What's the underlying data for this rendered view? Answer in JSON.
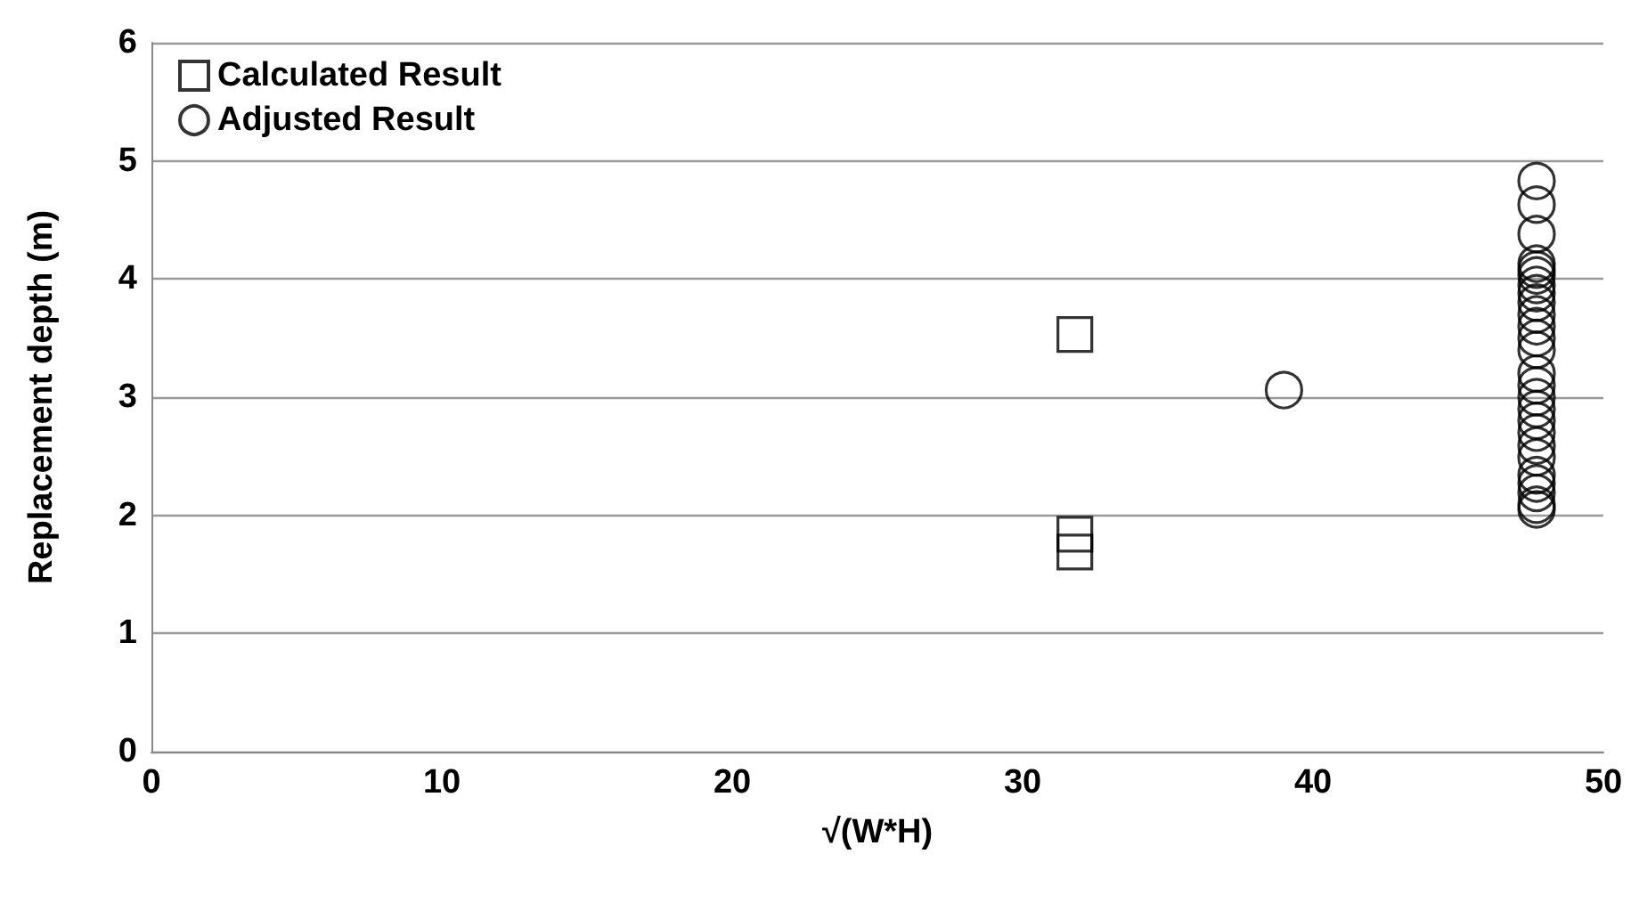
{
  "chart_data": {
    "type": "scatter",
    "xlabel": "√(W*H)",
    "ylabel": "Replacement depth (m)",
    "xlim": [
      0,
      50
    ],
    "xticks": [
      0,
      10,
      20,
      30,
      40,
      50
    ],
    "ylim": [
      0,
      6
    ],
    "yticks": [
      0,
      1,
      2,
      3,
      4,
      5,
      6
    ],
    "grid": "y",
    "legend": "top left",
    "series": [
      {
        "name": "Calculated Result",
        "color": "#000000",
        "marker": "square",
        "x": [
          31.8,
          31.8,
          31.8
        ],
        "values": [
          3.53,
          1.84,
          1.69
        ]
      },
      {
        "name": "Adjusted Result",
        "color": "#000000",
        "marker": "circle",
        "x": [
          39.0,
          47.7,
          47.7,
          47.7,
          47.7,
          47.7,
          47.7,
          47.7,
          47.7,
          47.7,
          47.7,
          47.7,
          47.7,
          47.7,
          47.7,
          47.7,
          47.7,
          47.7,
          47.7,
          47.7,
          47.7,
          47.7,
          47.7,
          47.7,
          47.7,
          47.7,
          47.7
        ],
        "values": [
          3.06,
          4.83,
          4.63,
          4.38,
          4.13,
          4.08,
          4.03,
          3.95,
          3.88,
          3.8,
          3.7,
          3.6,
          3.5,
          3.4,
          3.2,
          3.1,
          3.0,
          2.9,
          2.8,
          2.7,
          2.59,
          2.49,
          2.34,
          2.27,
          2.19,
          2.09,
          2.05
        ]
      }
    ]
  }
}
